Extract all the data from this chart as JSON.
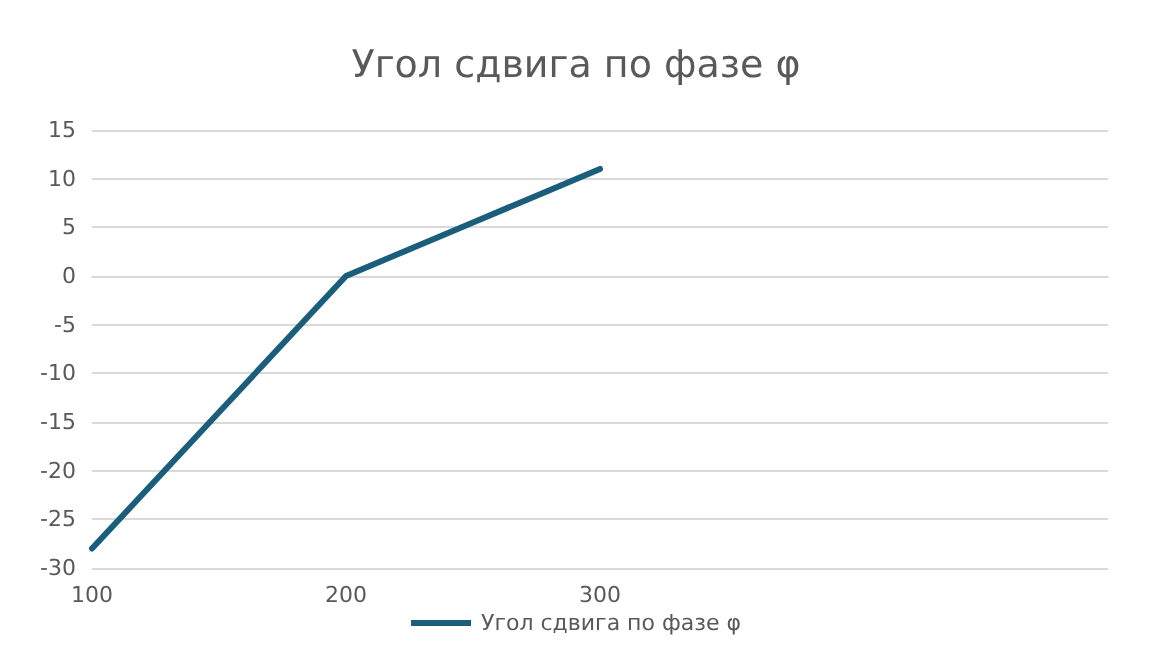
{
  "chart_data": {
    "type": "line",
    "title": "Угол сдвига по фазе φ",
    "x": [
      100,
      150,
      200,
      250,
      300
    ],
    "series": [
      {
        "name": "Угол сдвига по фазе φ",
        "color": "#1b5e7b",
        "values": [
          -28,
          -14,
          0,
          5.5,
          11
        ]
      }
    ],
    "xlim": [
      100,
      500
    ],
    "xticks": [
      100,
      200,
      300
    ],
    "ylim": [
      -30,
      15
    ],
    "yticks": [
      -30,
      -25,
      -20,
      -15,
      -10,
      -5,
      0,
      5,
      10,
      15
    ],
    "grid": "y",
    "legend": "bottom",
    "marker": "none",
    "line_style": "solid"
  }
}
